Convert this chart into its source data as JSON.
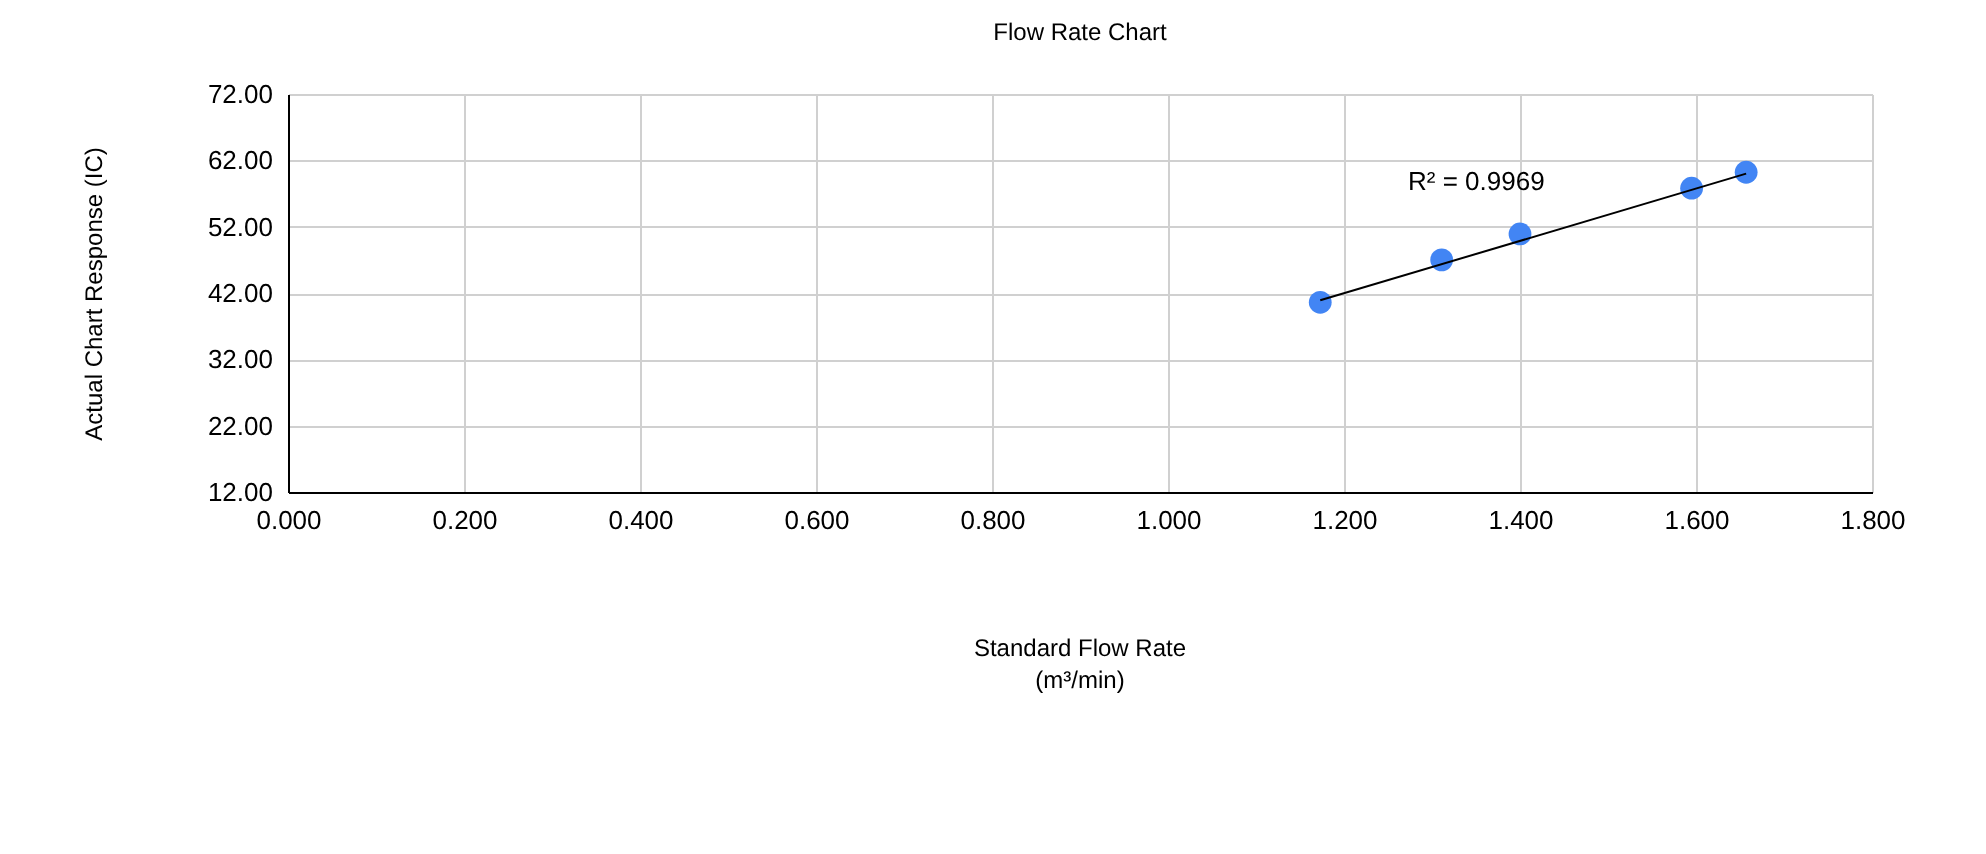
{
  "chart_data": {
    "type": "scatter",
    "title": "Flow Rate Chart",
    "xlabel": "Standard Flow Rate\n(m³/min)",
    "ylabel": "Actual Chart Response (IC)",
    "x": [
      1.173,
      1.311,
      1.4,
      1.595,
      1.657
    ],
    "series": [
      {
        "color": "#4285f4",
        "marker": "circle",
        "values": [
          40.6,
          47.0,
          50.9,
          57.8,
          60.2
        ]
      },
      {
        "type": "line",
        "color": "#000000",
        "x": [
          1.173,
          1.657
        ],
        "values": [
          40.9,
          60.0
        ]
      }
    ],
    "annotations": [
      "R² = 0.9969"
    ],
    "xlim": [
      0,
      1.8
    ],
    "ylim": [
      12,
      72
    ],
    "xticks": [
      {
        "value": 0,
        "label": "0.000"
      },
      {
        "value": 0.2,
        "label": "0.200"
      },
      {
        "value": 0.4,
        "label": "0.400"
      },
      {
        "value": 0.6,
        "label": "0.600"
      },
      {
        "value": 0.8,
        "label": "0.800"
      },
      {
        "value": 1.0,
        "label": "1.000"
      },
      {
        "value": 1.2,
        "label": "1.200"
      },
      {
        "value": 1.4,
        "label": "1.400"
      },
      {
        "value": 1.6,
        "label": "1.600"
      },
      {
        "value": 1.8,
        "label": "1.800"
      }
    ],
    "yticks": [
      {
        "value": 12,
        "label": "12.00"
      },
      {
        "value": 22,
        "label": "22.00"
      },
      {
        "value": 32,
        "label": "32.00"
      },
      {
        "value": 42,
        "label": "42.00"
      },
      {
        "value": 52,
        "label": "52.00"
      },
      {
        "value": 62,
        "label": "62.00"
      },
      {
        "value": 72,
        "label": "72.00"
      }
    ],
    "grid": true
  }
}
